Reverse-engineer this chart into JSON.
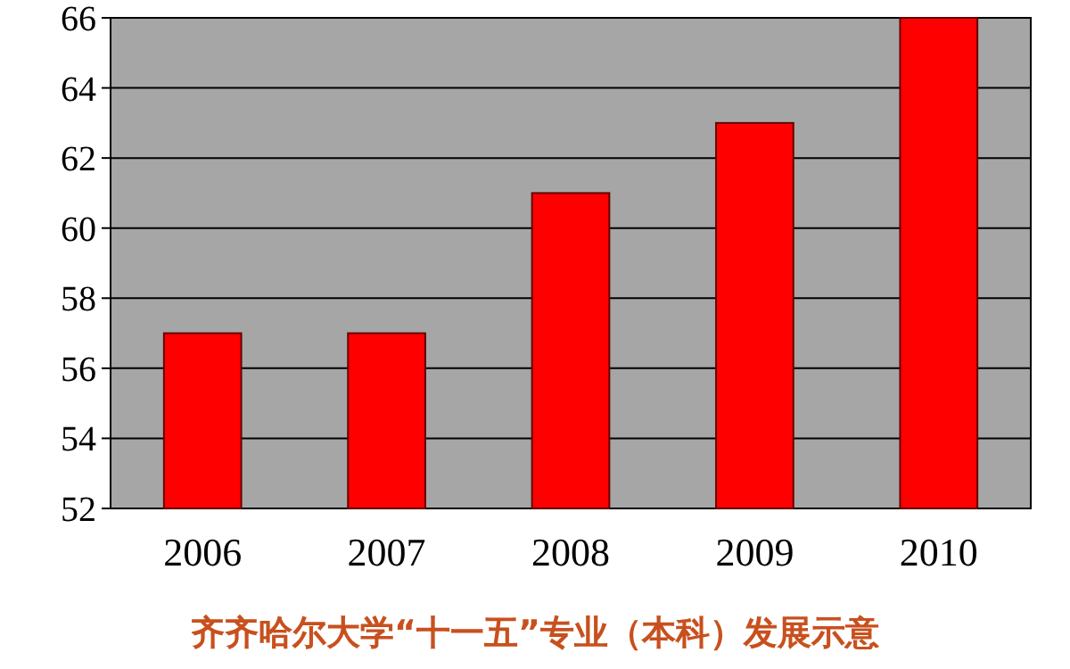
{
  "chart_data": {
    "type": "bar",
    "title": "齐齐哈尔大学“十一五”专业（本科）发展示意",
    "categories": [
      "2006",
      "2007",
      "2008",
      "2009",
      "2010"
    ],
    "values": [
      57,
      57,
      61,
      63,
      66
    ],
    "color": "#ff0000",
    "ylim": [
      52,
      66
    ],
    "yticks": [
      52,
      54,
      56,
      58,
      60,
      62,
      64,
      66
    ],
    "grid": "y"
  }
}
